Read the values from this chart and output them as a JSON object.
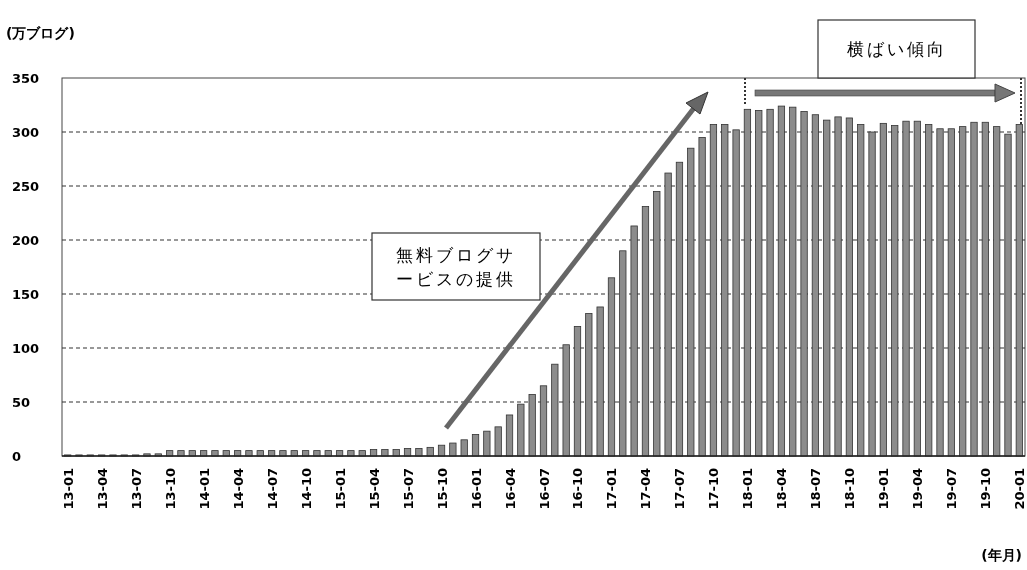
{
  "chart_data": {
    "type": "bar",
    "ylabel": "(万ブログ)",
    "xlabel": "(年月)",
    "categories": [
      "13-01",
      null,
      null,
      "13-04",
      null,
      null,
      "13-07",
      null,
      null,
      "13-10",
      null,
      null,
      "14-01",
      null,
      null,
      "14-04",
      null,
      null,
      "14-07",
      null,
      null,
      "14-10",
      null,
      null,
      "15-01",
      null,
      null,
      "15-04",
      null,
      null,
      "15-07",
      null,
      null,
      "15-10",
      null,
      null,
      "16-01",
      null,
      null,
      "16-04",
      null,
      null,
      "16-07",
      null,
      null,
      "16-10",
      null,
      null,
      "17-01",
      null,
      null,
      "17-04",
      null,
      null,
      "17-07",
      null,
      null,
      "17-10",
      null,
      null,
      "18-01",
      null,
      null,
      "18-04",
      null,
      null,
      "18-07",
      null,
      null,
      "18-10",
      null,
      null,
      "19-01",
      null,
      null,
      "19-04",
      null,
      null,
      "19-07",
      null,
      null,
      "19-10",
      null,
      null,
      "20-01"
    ],
    "values": [
      1,
      1,
      1,
      1,
      1,
      1,
      1,
      2,
      2,
      5,
      5,
      5,
      5,
      5,
      5,
      5,
      5,
      5,
      5,
      5,
      5,
      5,
      5,
      5,
      5,
      5,
      5,
      6,
      6,
      6,
      7,
      7,
      8,
      10,
      12,
      15,
      20,
      23,
      27,
      38,
      48,
      57,
      65,
      85,
      103,
      120,
      132,
      138,
      165,
      190,
      213,
      231,
      245,
      262,
      272,
      285,
      295,
      307,
      307,
      302,
      321,
      320,
      321,
      324,
      323,
      319,
      316,
      311,
      314,
      313,
      307,
      300,
      308,
      306,
      310,
      310,
      307,
      303,
      303,
      305,
      309,
      309,
      305,
      298,
      307
    ],
    "color": "#8c8c8c",
    "ylim": [
      0,
      350
    ],
    "yticks": [
      0,
      50,
      100,
      150,
      200,
      250,
      300,
      350
    ],
    "grid": "y",
    "annotations": [
      "無料ブログサービスの提供",
      "横ばい傾向"
    ]
  }
}
